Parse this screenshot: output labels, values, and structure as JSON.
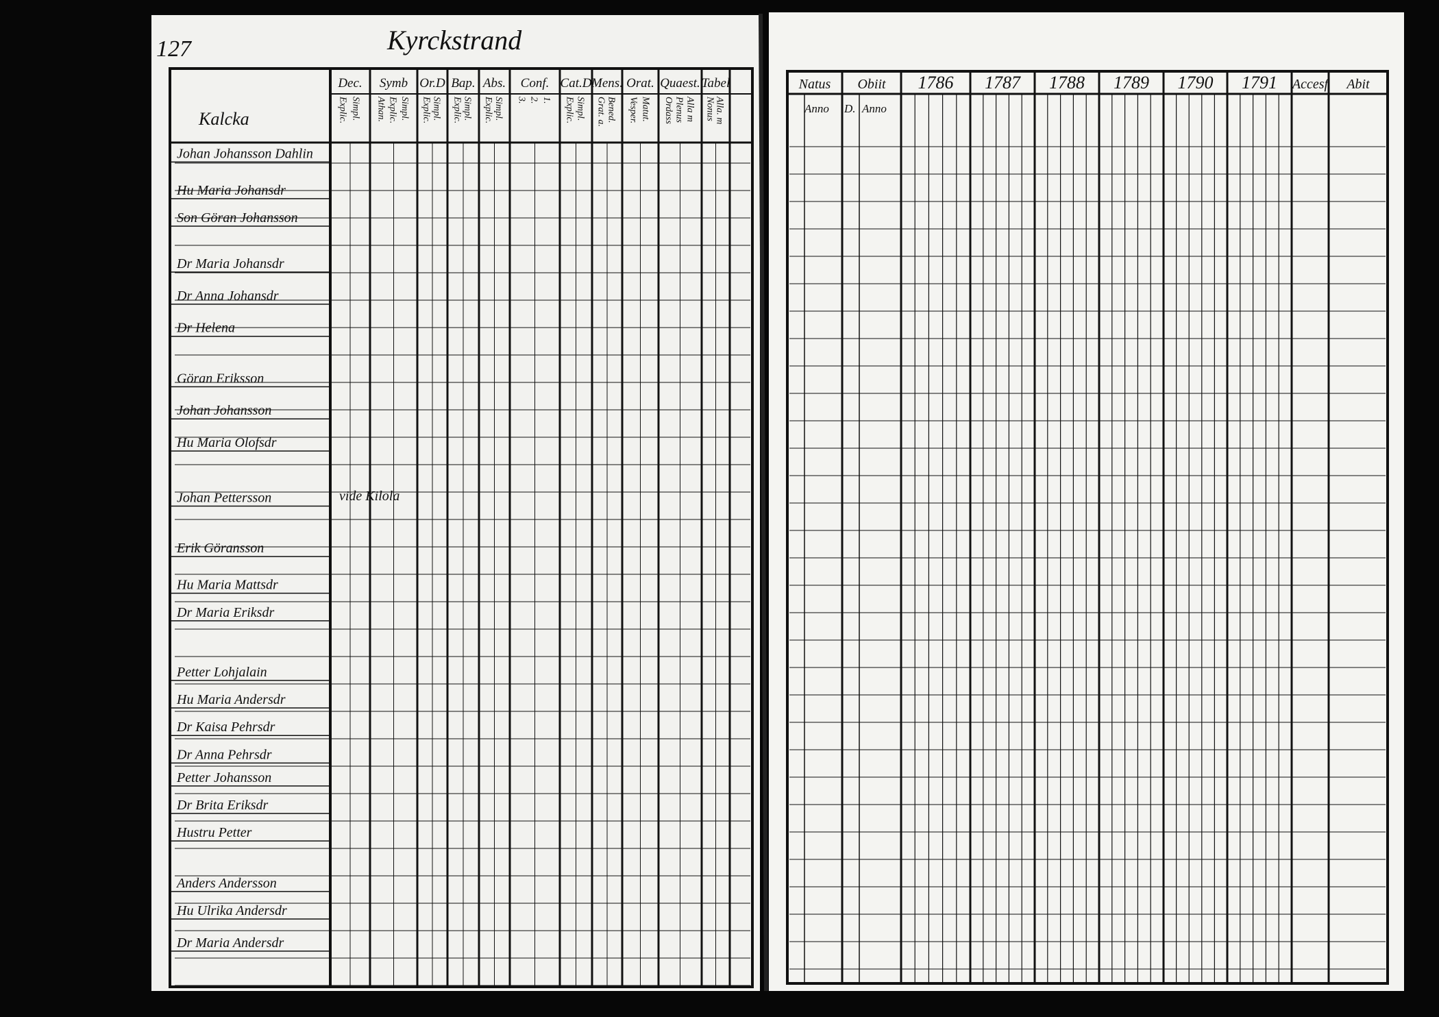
{
  "left_page": {
    "page_number": "127",
    "title": "Kyrckstrand",
    "village": "Kalcka",
    "columns": [
      {
        "label": "Dec.",
        "sub": [
          "Explic.",
          "Simpl."
        ]
      },
      {
        "label": "Symb",
        "sub": [
          "Athan.",
          "Explic.",
          "Simpl."
        ]
      },
      {
        "label": "Or.D",
        "sub": [
          "Explic.",
          "Simpl."
        ]
      },
      {
        "label": "Bap.",
        "sub": [
          "Explic.",
          "Simpl."
        ]
      },
      {
        "label": "Abs.",
        "sub": [
          "Explic.",
          "Simpl."
        ]
      },
      {
        "label": "Conf.",
        "sub": [
          "3.",
          "2.",
          "1."
        ]
      },
      {
        "label": "Cat.D",
        "sub": [
          "Explic.",
          "Simpl."
        ]
      },
      {
        "label": "Mens.",
        "sub": [
          "Grat. a.",
          "Bened."
        ]
      },
      {
        "label": "Orat.",
        "sub": [
          "Vesper.",
          "Matut."
        ]
      },
      {
        "label": "Quaest.",
        "sub": [
          "Ordass",
          "Plenus",
          "Alla m"
        ]
      },
      {
        "label": "Tabel",
        "sub": [
          "Nonus",
          "Alla. m"
        ]
      }
    ],
    "rows": [
      "Johan Johansson Dahlin",
      "Hu Maria Johansdr",
      "Son Göran Johansson",
      "Dr Maria Johansdr",
      "Dr Anna Johansdr",
      "Dr Helena",
      "Göran Eriksson",
      "Johan Johansson",
      "Hu Maria Olofsdr",
      "Johan Pettersson",
      "Erik Göransson",
      "Hu Maria Mattsdr",
      "Dr Maria Eriksdr",
      "Petter Lohjalain",
      "Hu Maria Andersdr",
      "Dr Kaisa Pehrsdr",
      "Dr Anna Pehrsdr",
      "Petter Johansson",
      "Dr Brita Eriksdr",
      "Hustru Petter",
      "Anders Andersson",
      "Hu Ulrika Andersdr",
      "Dr Maria Andersdr"
    ],
    "note": "vide Kilola"
  },
  "right_page": {
    "columns": [
      "Natus",
      "Obiit",
      "1786",
      "1787",
      "1788",
      "1789",
      "1790",
      "1791",
      "Accesf",
      "Abit"
    ],
    "sub_columns": [
      "Anno",
      "D.",
      "Anno"
    ]
  }
}
